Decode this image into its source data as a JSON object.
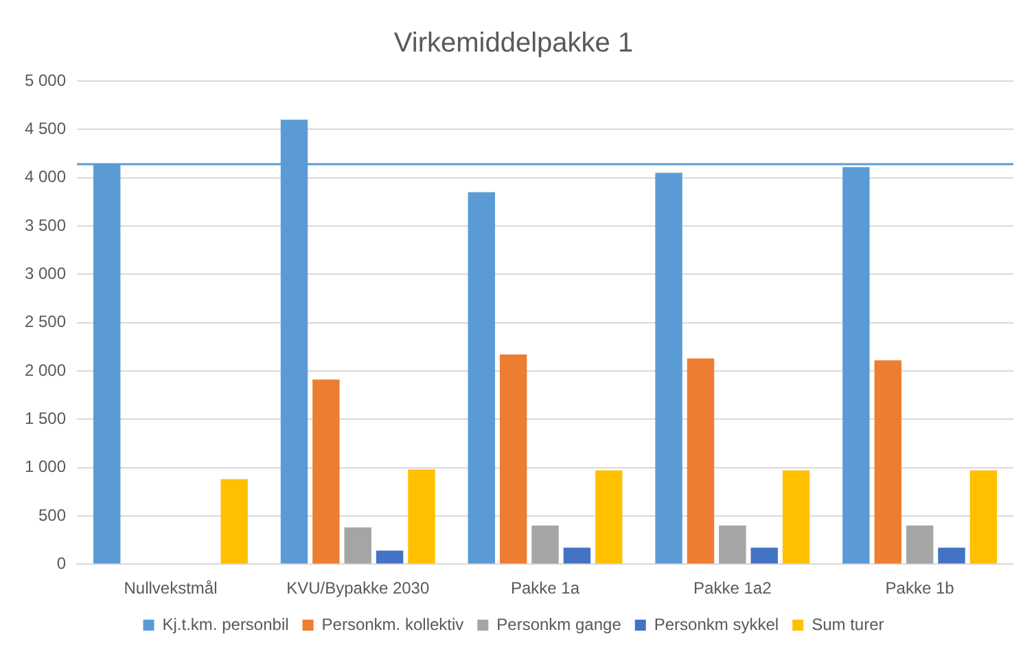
{
  "chart_data": {
    "type": "bar",
    "title": "Virkemiddelpakke 1",
    "categories": [
      "Nullvekstmål",
      "KVU/Bypakke 2030",
      "Pakke 1a",
      "Pakke 1a2",
      "Pakke 1b"
    ],
    "series": [
      {
        "name": "Kj.t.km. personbil",
        "color": "#5b9bd5",
        "values": [
          4140,
          4600,
          3850,
          4050,
          4110
        ]
      },
      {
        "name": "Personkm. kollektiv",
        "color": "#ed7d31",
        "values": [
          null,
          1910,
          2170,
          2130,
          2110
        ]
      },
      {
        "name": "Personkm gange",
        "color": "#a5a5a5",
        "values": [
          null,
          380,
          400,
          400,
          400
        ]
      },
      {
        "name": "Personkm sykkel",
        "color": "#4472c4",
        "values": [
          null,
          140,
          170,
          170,
          170
        ]
      },
      {
        "name": "Sum turer",
        "color": "#ffc000",
        "values": [
          880,
          980,
          970,
          970,
          970
        ]
      }
    ],
    "ylim": [
      0,
      5000
    ],
    "yticks": [
      0,
      {
        "value": 500,
        "label": "500"
      },
      {
        "value": 1000,
        "label": "1 000"
      },
      {
        "value": 1500,
        "label": "1 500"
      },
      {
        "value": 2000,
        "label": "2 000"
      },
      {
        "value": 2500,
        "label": "2 500"
      },
      {
        "value": 3000,
        "label": "3 000"
      },
      {
        "value": 3500,
        "label": "3 500"
      },
      {
        "value": 4000,
        "label": "4 000"
      },
      {
        "value": 4500,
        "label": "4 500"
      },
      {
        "value": 5000,
        "label": "5 000"
      }
    ],
    "ref_lines": [
      {
        "axis": "y",
        "value": 4140,
        "color": "#5b9bd5"
      }
    ],
    "grid": "y",
    "legend": "bottom"
  }
}
